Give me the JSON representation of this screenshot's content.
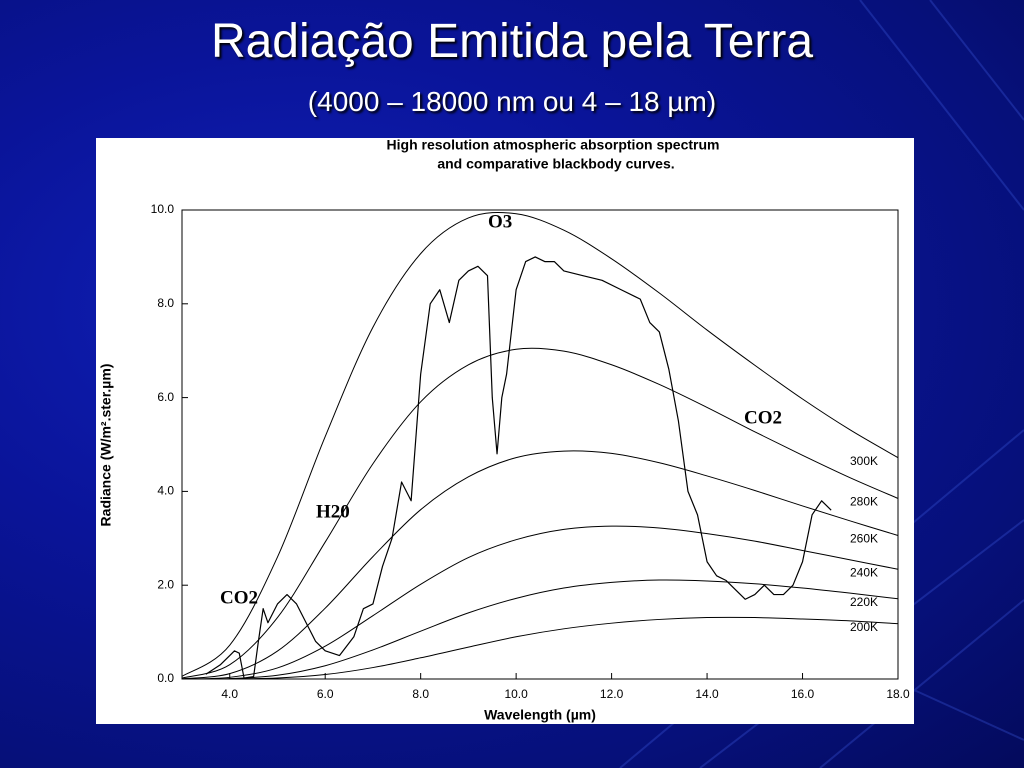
{
  "slide": {
    "title": "Radiação Emitida pela Terra",
    "subtitle": "(4000 – 18000 nm ou 4 – 18 µm)"
  },
  "chart_data": {
    "type": "line",
    "title": "High resolution atmospheric absorption spectrum",
    "subtitle": "and comparative blackbody curves.",
    "x_label": "Wavelength (µm)",
    "y_label": "Radiance (W/m².ster.µm)",
    "xlim": [
      3,
      18
    ],
    "xticks": [
      {
        "value": 4,
        "label": "4.0"
      },
      {
        "value": 6,
        "label": "6.0"
      },
      {
        "value": 8,
        "label": "8.0"
      },
      {
        "value": 10,
        "label": "10.0"
      },
      {
        "value": 12,
        "label": "12.0"
      },
      {
        "value": 14,
        "label": "14.0"
      },
      {
        "value": 16,
        "label": "16.0"
      },
      {
        "value": 18,
        "label": "18.0"
      }
    ],
    "ylim": [
      0,
      10
    ],
    "yticks": [
      {
        "value": 0,
        "label": "0.0"
      },
      {
        "value": 2,
        "label": "2.0"
      },
      {
        "value": 4,
        "label": "4.0"
      },
      {
        "value": 6,
        "label": "6.0"
      },
      {
        "value": 8,
        "label": "8.0"
      },
      {
        "value": 10,
        "label": "10.0"
      }
    ],
    "x": [
      3,
      4,
      5,
      6,
      7,
      8,
      9,
      10,
      11,
      12,
      13,
      14,
      15,
      16,
      17,
      18
    ],
    "series": [
      {
        "name": "300K",
        "color": "#000000",
        "values": [
          0.056,
          0.721,
          2.6,
          5.17,
          7.5,
          9.07,
          9.83,
          9.92,
          9.57,
          8.96,
          8.23,
          7.44,
          6.69,
          5.97,
          5.31,
          4.72
        ]
      },
      {
        "name": "280K",
        "color": "#000000",
        "values": [
          0.018,
          0.306,
          1.31,
          2.92,
          4.59,
          5.91,
          6.7,
          7.03,
          6.99,
          6.7,
          6.28,
          5.79,
          5.27,
          4.77,
          4.29,
          3.85
        ]
      },
      {
        "name": "260K",
        "color": "#000000",
        "values": [
          0.005,
          0.115,
          0.595,
          1.51,
          2.61,
          3.61,
          4.31,
          4.72,
          4.86,
          4.81,
          4.61,
          4.33,
          4.02,
          3.69,
          3.37,
          3.06
        ]
      },
      {
        "name": "240K",
        "color": "#000000",
        "values": [
          0.001,
          0.036,
          0.236,
          0.7,
          1.35,
          2.02,
          2.59,
          2.97,
          3.19,
          3.26,
          3.22,
          3.1,
          2.94,
          2.74,
          2.54,
          2.34
        ]
      },
      {
        "name": "220K",
        "color": "#000000",
        "values": [
          0,
          0.009,
          0.08,
          0.283,
          0.62,
          1.02,
          1.41,
          1.72,
          1.94,
          2.06,
          2.11,
          2.09,
          2.03,
          1.94,
          1.83,
          1.71
        ]
      },
      {
        "name": "200K",
        "color": "#000000",
        "values": [
          0,
          0.002,
          0.021,
          0.095,
          0.244,
          0.452,
          0.68,
          0.9,
          1.07,
          1.19,
          1.27,
          1.31,
          1.31,
          1.28,
          1.24,
          1.18
        ]
      },
      {
        "color": "#000000",
        "x": [
          3.5,
          3.8,
          4.0,
          4.1,
          4.2,
          4.3,
          4.5,
          4.6,
          4.7,
          4.8,
          5.0,
          5.2,
          5.4,
          5.6,
          5.8,
          6.0,
          6.3,
          6.6,
          6.8,
          7.0,
          7.2,
          7.4,
          7.6,
          7.8,
          8.0,
          8.2,
          8.4,
          8.6,
          8.8,
          9.0,
          9.2,
          9.4,
          9.5,
          9.6,
          9.7,
          9.8,
          10.0,
          10.2,
          10.4,
          10.6,
          10.8,
          11.0,
          11.4,
          11.8,
          12.2,
          12.6,
          12.8,
          13.0,
          13.2,
          13.4,
          13.6,
          13.8,
          14.0,
          14.2,
          14.4,
          14.6,
          14.8,
          15.0,
          15.2,
          15.4,
          15.6,
          15.8,
          16.0,
          16.2,
          16.4,
          16.6
        ],
        "values": [
          0.1,
          0.3,
          0.5,
          0.6,
          0.55,
          0.02,
          0.05,
          0.8,
          1.5,
          1.2,
          1.6,
          1.8,
          1.6,
          1.2,
          0.8,
          0.6,
          0.5,
          0.9,
          1.5,
          1.6,
          2.4,
          3.0,
          4.2,
          3.8,
          6.5,
          8.0,
          8.3,
          7.6,
          8.5,
          8.7,
          8.8,
          8.6,
          6.0,
          4.8,
          6.0,
          6.5,
          8.3,
          8.9,
          9.0,
          8.9,
          8.9,
          8.7,
          8.6,
          8.5,
          8.3,
          8.1,
          7.6,
          7.4,
          6.6,
          5.5,
          4.0,
          3.5,
          2.5,
          2.2,
          2.1,
          1.9,
          1.7,
          1.8,
          2.0,
          1.8,
          1.8,
          2.0,
          2.5,
          3.5,
          3.8,
          3.6
        ]
      }
    ],
    "annotations": [
      "O3",
      "CO2",
      "H20",
      "CO2"
    ]
  }
}
